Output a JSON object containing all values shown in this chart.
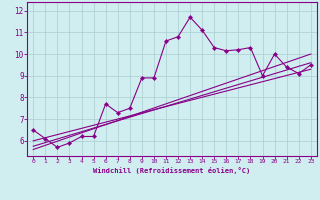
{
  "xlabel": "Windchill (Refroidissement éolien,°C)",
  "bg_color": "#d0eef0",
  "line_color": "#880088",
  "grid_color": "#aaccd0",
  "spine_color": "#880088",
  "xlim": [
    -0.5,
    23.5
  ],
  "ylim": [
    5.3,
    12.4
  ],
  "xticks": [
    0,
    1,
    2,
    3,
    4,
    5,
    6,
    7,
    8,
    9,
    10,
    11,
    12,
    13,
    14,
    15,
    16,
    17,
    18,
    19,
    20,
    21,
    22,
    23
  ],
  "yticks": [
    6,
    7,
    8,
    9,
    10,
    11,
    12
  ],
  "data_x": [
    0,
    1,
    2,
    3,
    4,
    5,
    6,
    7,
    8,
    9,
    10,
    11,
    12,
    13,
    14,
    15,
    16,
    17,
    18,
    19,
    20,
    21,
    22,
    23
  ],
  "data_y": [
    6.5,
    6.1,
    5.7,
    5.9,
    6.2,
    6.2,
    7.7,
    7.3,
    7.5,
    8.9,
    8.9,
    10.6,
    10.8,
    11.7,
    11.1,
    10.3,
    10.15,
    10.2,
    10.3,
    9.0,
    10.0,
    9.4,
    9.1,
    9.5
  ],
  "trend1_x": [
    0,
    23
  ],
  "trend1_y": [
    6.0,
    9.3
  ],
  "trend2_x": [
    0,
    23
  ],
  "trend2_y": [
    5.75,
    9.6
  ],
  "trend3_x": [
    0,
    23
  ],
  "trend3_y": [
    5.6,
    10.0
  ]
}
